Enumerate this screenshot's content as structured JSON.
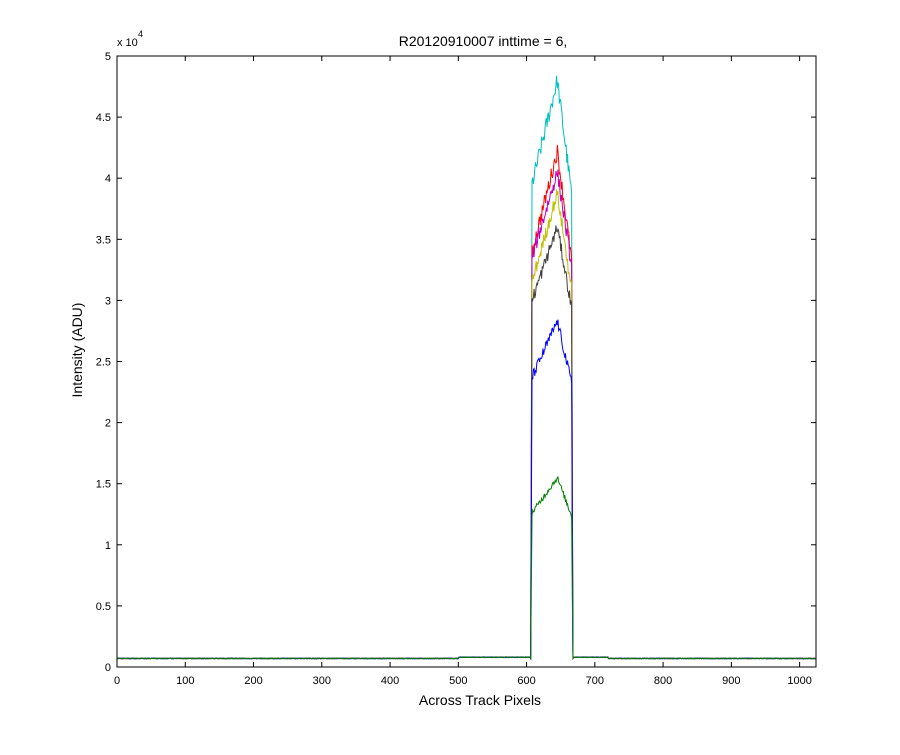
{
  "chart_data": {
    "type": "line",
    "title": "R20120910007 inttime = 6,",
    "xlabel": "Across Track Pixels",
    "ylabel": "Intensity (ADU)",
    "y_exponent_base": "x 10",
    "y_exponent_power": "4",
    "xlim": [
      0,
      1024
    ],
    "ylim": [
      0,
      5
    ],
    "xticks": [
      0,
      100,
      200,
      300,
      400,
      500,
      600,
      700,
      800,
      900,
      1000
    ],
    "yticks": [
      0,
      0.5,
      1,
      1.5,
      2,
      2.5,
      3,
      3.5,
      4,
      4.5,
      5
    ],
    "ytick_labels": [
      "0",
      "0.5",
      "1",
      "1.5",
      "2",
      "2.5",
      "3",
      "3.5",
      "4",
      "4.5",
      "5"
    ],
    "xtick_labels": [
      "0",
      "100",
      "200",
      "300",
      "400",
      "500",
      "600",
      "700",
      "800",
      "900",
      "1000"
    ],
    "grid": false,
    "plateau_start": 608,
    "plateau_end": 666,
    "peak_x": 645,
    "baseline": 0.07,
    "series": [
      {
        "color": "#00bfbf",
        "edge": 3.95,
        "peak": 4.8
      },
      {
        "color": "#ff0000",
        "edge": 3.4,
        "peak": 4.22
      },
      {
        "color": "#bf00bf",
        "edge": 3.35,
        "peak": 4.05
      },
      {
        "color": "#bfbf00",
        "edge": 3.15,
        "peak": 3.88
      },
      {
        "color": "#404040",
        "edge": 3.0,
        "peak": 3.6
      },
      {
        "color": "#0000ff",
        "edge": 2.37,
        "peak": 2.83
      },
      {
        "color": "#008000",
        "edge": 1.26,
        "peak": 1.55
      }
    ]
  }
}
